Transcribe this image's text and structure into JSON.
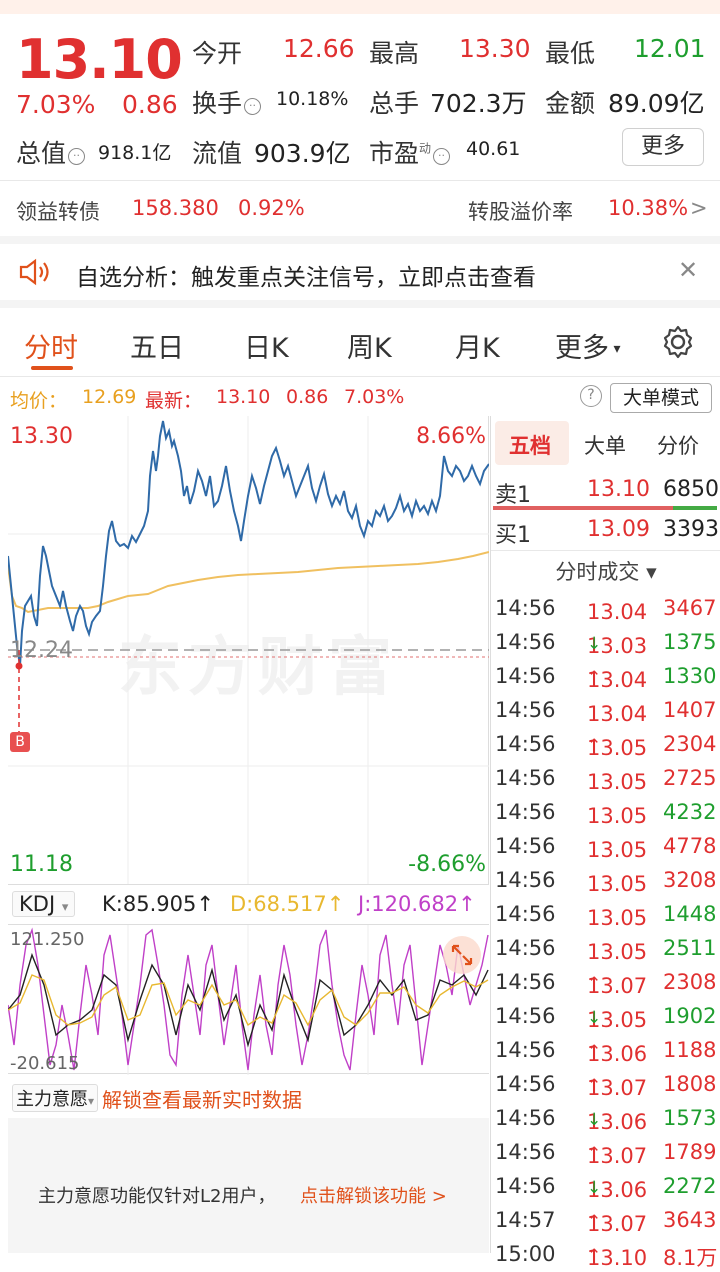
{
  "quote": {
    "price": "13.10",
    "change_pct": "7.03%",
    "change_abs": "0.86",
    "open_label": "今开",
    "open": "12.66",
    "high_label": "最高",
    "high": "13.30",
    "low_label": "最低",
    "low": "12.01",
    "turnover_label": "换手",
    "turnover": "10.18%",
    "volume_label": "总手",
    "volume": "702.3万",
    "amount_label": "金额",
    "amount": "89.09亿",
    "mktcap_label": "总值",
    "mktcap": "918.1亿",
    "float_label": "流值",
    "float": "903.9亿",
    "pe_label": "市盈",
    "pe_sup": "动",
    "pe": "40.61",
    "more_button": "更多"
  },
  "bond": {
    "name": "领益转债",
    "price": "158.380",
    "pct": "0.92%",
    "premium_label": "转股溢价率",
    "premium": "10.38%",
    "arrow": ">"
  },
  "notice": {
    "text": "自选分析：触发重点关注信号，立即点击查看",
    "close": "✕"
  },
  "tabs": [
    "分时",
    "五日",
    "日K",
    "周K",
    "月K",
    "更多"
  ],
  "avg": {
    "avg_label": "均价：",
    "avg": "12.69",
    "latest_label": "最新：",
    "latest": "13.10",
    "chg": "0.86",
    "pct": "7.03%",
    "help": "?",
    "big_order_btn": "大单模式"
  },
  "chart": {
    "top_price": "13.30",
    "top_pct": "8.66%",
    "bottom_price": "11.18",
    "bottom_pct": "-8.66%",
    "prev_close": "12.24",
    "buy_marker": "B",
    "watermark": "东方财富"
  },
  "kdj": {
    "name": "KDJ",
    "dropdown": "▾",
    "k": "K:85.905↑",
    "d": "D:68.517↑",
    "j": "J:120.682↑",
    "max": "121.250",
    "min": "-20.615"
  },
  "flow": {
    "name": "主力意愿",
    "dropdown": "▾",
    "unlock": "解锁查看最新实时数据",
    "l2_text": "主力意愿功能仅针对L2用户，",
    "l2_link": "点击解锁该功能 >"
  },
  "panel": {
    "tabs": [
      "五档",
      "大单",
      "分价"
    ],
    "ask_label": "卖1",
    "ask_price": "13.10",
    "ask_vol": "6850",
    "bid_label": "买1",
    "bid_price": "13.09",
    "bid_vol": "3393",
    "trades_title": "分时成交 ▾",
    "trades": [
      {
        "t": "14:56",
        "p": "13.04",
        "a": "",
        "v": "3467",
        "c": "red"
      },
      {
        "t": "14:56",
        "p": "13.03",
        "a": "↓",
        "v": "1375",
        "c": "green"
      },
      {
        "t": "14:56",
        "p": "13.04",
        "a": "↑",
        "v": "1330",
        "c": "green"
      },
      {
        "t": "14:56",
        "p": "13.04",
        "a": "",
        "v": "1407",
        "c": "red"
      },
      {
        "t": "14:56",
        "p": "13.05",
        "a": "↑",
        "v": "2304",
        "c": "red"
      },
      {
        "t": "14:56",
        "p": "13.05",
        "a": "",
        "v": "2725",
        "c": "red"
      },
      {
        "t": "14:56",
        "p": "13.05",
        "a": "",
        "v": "4232",
        "c": "green"
      },
      {
        "t": "14:56",
        "p": "13.05",
        "a": "",
        "v": "4778",
        "c": "red"
      },
      {
        "t": "14:56",
        "p": "13.05",
        "a": "",
        "v": "3208",
        "c": "red"
      },
      {
        "t": "14:56",
        "p": "13.05",
        "a": "",
        "v": "1448",
        "c": "green"
      },
      {
        "t": "14:56",
        "p": "13.05",
        "a": "",
        "v": "2511",
        "c": "green"
      },
      {
        "t": "14:56",
        "p": "13.07",
        "a": "↑",
        "v": "2308",
        "c": "red"
      },
      {
        "t": "14:56",
        "p": "13.05",
        "a": "↓",
        "v": "1902",
        "c": "green"
      },
      {
        "t": "14:56",
        "p": "13.06",
        "a": "↑",
        "v": "1188",
        "c": "red"
      },
      {
        "t": "14:56",
        "p": "13.07",
        "a": "↑",
        "v": "1808",
        "c": "red"
      },
      {
        "t": "14:56",
        "p": "13.06",
        "a": "↓",
        "v": "1573",
        "c": "green"
      },
      {
        "t": "14:56",
        "p": "13.07",
        "a": "↑",
        "v": "1789",
        "c": "red"
      },
      {
        "t": "14:56",
        "p": "13.06",
        "a": "↓",
        "v": "2272",
        "c": "green"
      },
      {
        "t": "14:57",
        "p": "13.07",
        "a": "↑",
        "v": "3643",
        "c": "red"
      },
      {
        "t": "15:00",
        "p": "13.10",
        "a": "↑",
        "v": "8.1万",
        "c": "red"
      }
    ]
  },
  "colors": {
    "up": "#e03030",
    "down": "#1e9e2e",
    "accent": "#e0511b",
    "price_line": "#2f6aa8",
    "avg_line": "#f0c060",
    "k_line": "#222222",
    "d_line": "#e8b830",
    "j_line": "#c040c8"
  }
}
